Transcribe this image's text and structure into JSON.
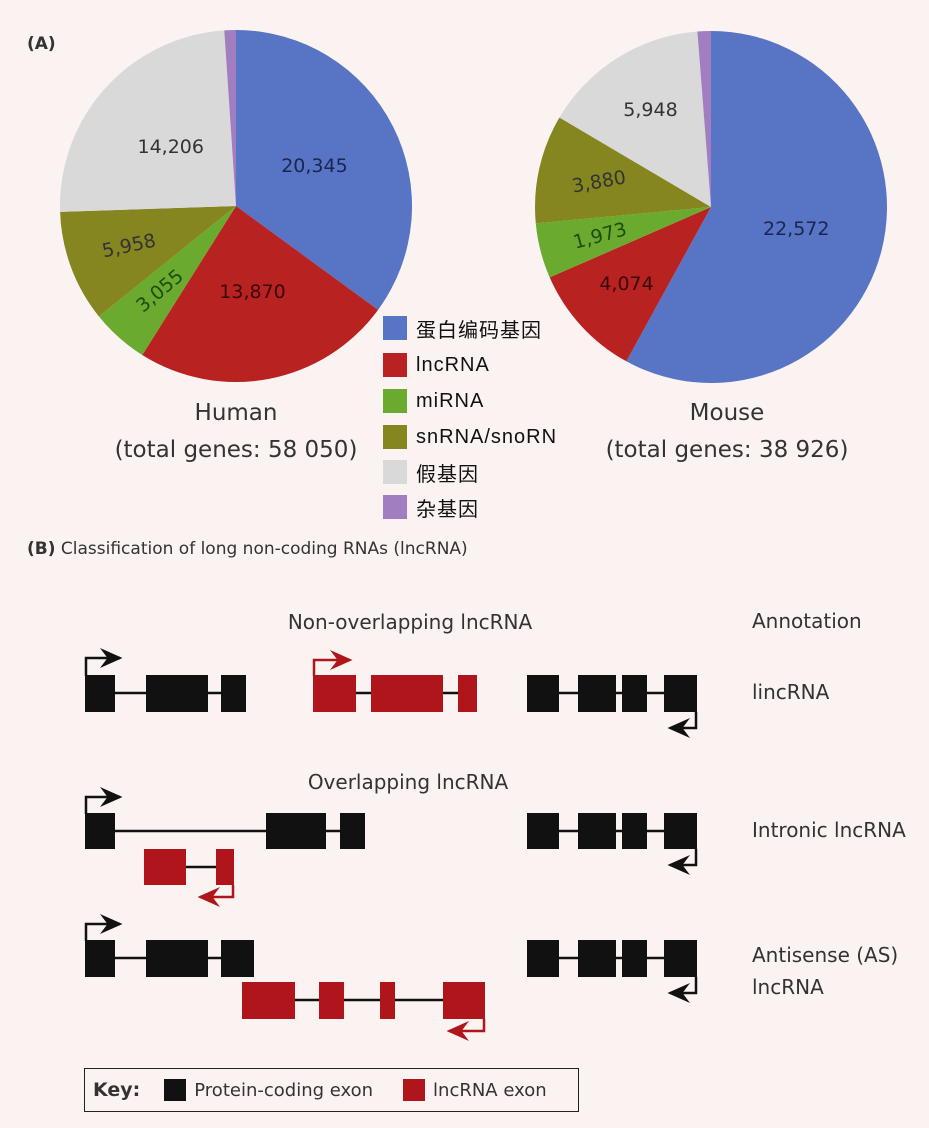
{
  "panel_a_label": "(A)",
  "panel_b_label": "(B)",
  "panel_b_title": "Classification of long non-coding RNAs (lncRNA)",
  "legend": [
    {
      "label": "蛋白编码基因",
      "color": "#5874c4"
    },
    {
      "label": "lncRNA",
      "color": "#b82221"
    },
    {
      "label": "miRNA",
      "color": "#6aaa2e"
    },
    {
      "label": "snRNA/snoRN",
      "color": "#858620"
    },
    {
      "label": "假基因",
      "color": "#d9d9d9"
    },
    {
      "label": "杂基因",
      "color": "#a07ec0"
    }
  ],
  "chart_data": [
    {
      "type": "pie",
      "title": "Human",
      "subtitle": "(total genes: 58 050)",
      "total": 58050,
      "categories": [
        "蛋白编码基因",
        "lncRNA",
        "miRNA",
        "snRNA/snoRN",
        "假基因",
        "杂基因"
      ],
      "values": [
        20345,
        13870,
        3055,
        5958,
        14206,
        616
      ],
      "data_labels": [
        "20,345",
        "13,870",
        "3,055",
        "5,958",
        "14,206",
        ""
      ]
    },
    {
      "type": "pie",
      "title": "Mouse",
      "subtitle": "(total genes: 38 926)",
      "total": 38926,
      "categories": [
        "蛋白编码基因",
        "lncRNA",
        "miRNA",
        "snRNA/snoRN",
        "假基因",
        "杂基因"
      ],
      "values": [
        22572,
        4074,
        1973,
        3880,
        5948,
        479
      ],
      "data_labels": [
        "22,572",
        "4,074",
        "1,973",
        "3,880",
        "5,948",
        ""
      ]
    }
  ],
  "diagram": {
    "non_overlapping_title": "Non-overlapping lncRNA",
    "overlapping_title": "Overlapping lncRNA",
    "annotation_header": "Annotation",
    "annotations": [
      "lincRNA",
      "Intronic lncRNA",
      "Antisense (AS)",
      "lncRNA"
    ],
    "key_label": "Key:",
    "key_items": [
      {
        "label": "Protein-coding exon",
        "color": "#111111"
      },
      {
        "label": "lncRNA exon",
        "color": "#b0151b"
      }
    ]
  }
}
